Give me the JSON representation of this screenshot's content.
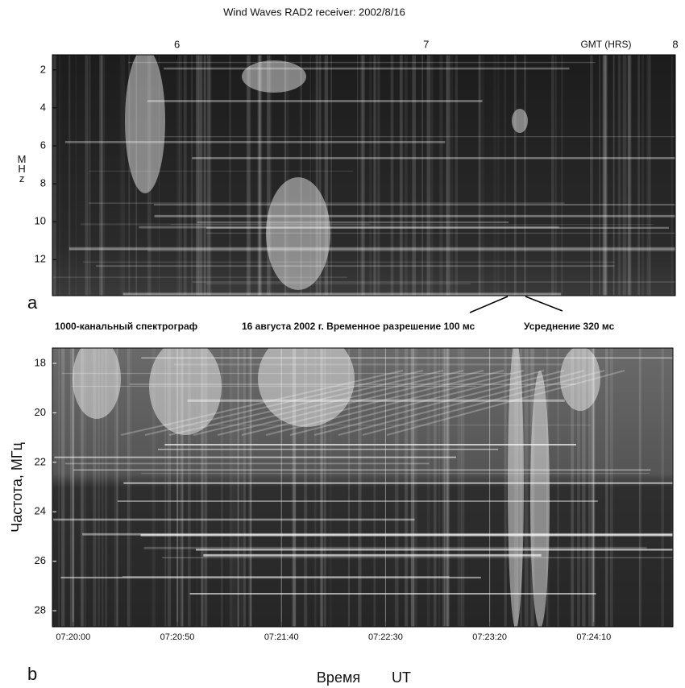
{
  "chart_data": [
    {
      "type": "spectrogram",
      "title": "Wind Waves RAD2 receiver: 2002/8/16",
      "x_label": "GMT (HRS)",
      "y_label": "MHz",
      "panel_label": "a",
      "xlim": [
        5.5,
        8
      ],
      "xticks": [
        6,
        7,
        8
      ],
      "ylim": [
        1.2,
        13.9
      ],
      "yticks": [
        2,
        4,
        6,
        8,
        10,
        12
      ],
      "y_inverted": true,
      "x_axis_position": "top"
    },
    {
      "type": "spectrogram",
      "annotations": [
        "1000-канальный спектрограф",
        "16 августа 2002 г. Временное разрешение 100 мс",
        "Усреднение 320 мс"
      ],
      "x_label": "Время",
      "x_unit": "UT",
      "y_label": "Частота, МГц",
      "panel_label": "b",
      "xlim": [
        26390,
        26688
      ],
      "xticks": [
        {
          "value": 26400,
          "label": "07:20:00"
        },
        {
          "value": 26450,
          "label": "07:20:50"
        },
        {
          "value": 26500,
          "label": "07:21:40"
        },
        {
          "value": 26550,
          "label": "07:22:30"
        },
        {
          "value": 26600,
          "label": "07:23:20"
        },
        {
          "value": 26650,
          "label": "07:24:10"
        }
      ],
      "ylim": [
        17.38,
        28.65
      ],
      "yticks": [
        18,
        20,
        22,
        24,
        26,
        28
      ],
      "y_inverted": true,
      "x_axis_position": "bottom"
    }
  ]
}
